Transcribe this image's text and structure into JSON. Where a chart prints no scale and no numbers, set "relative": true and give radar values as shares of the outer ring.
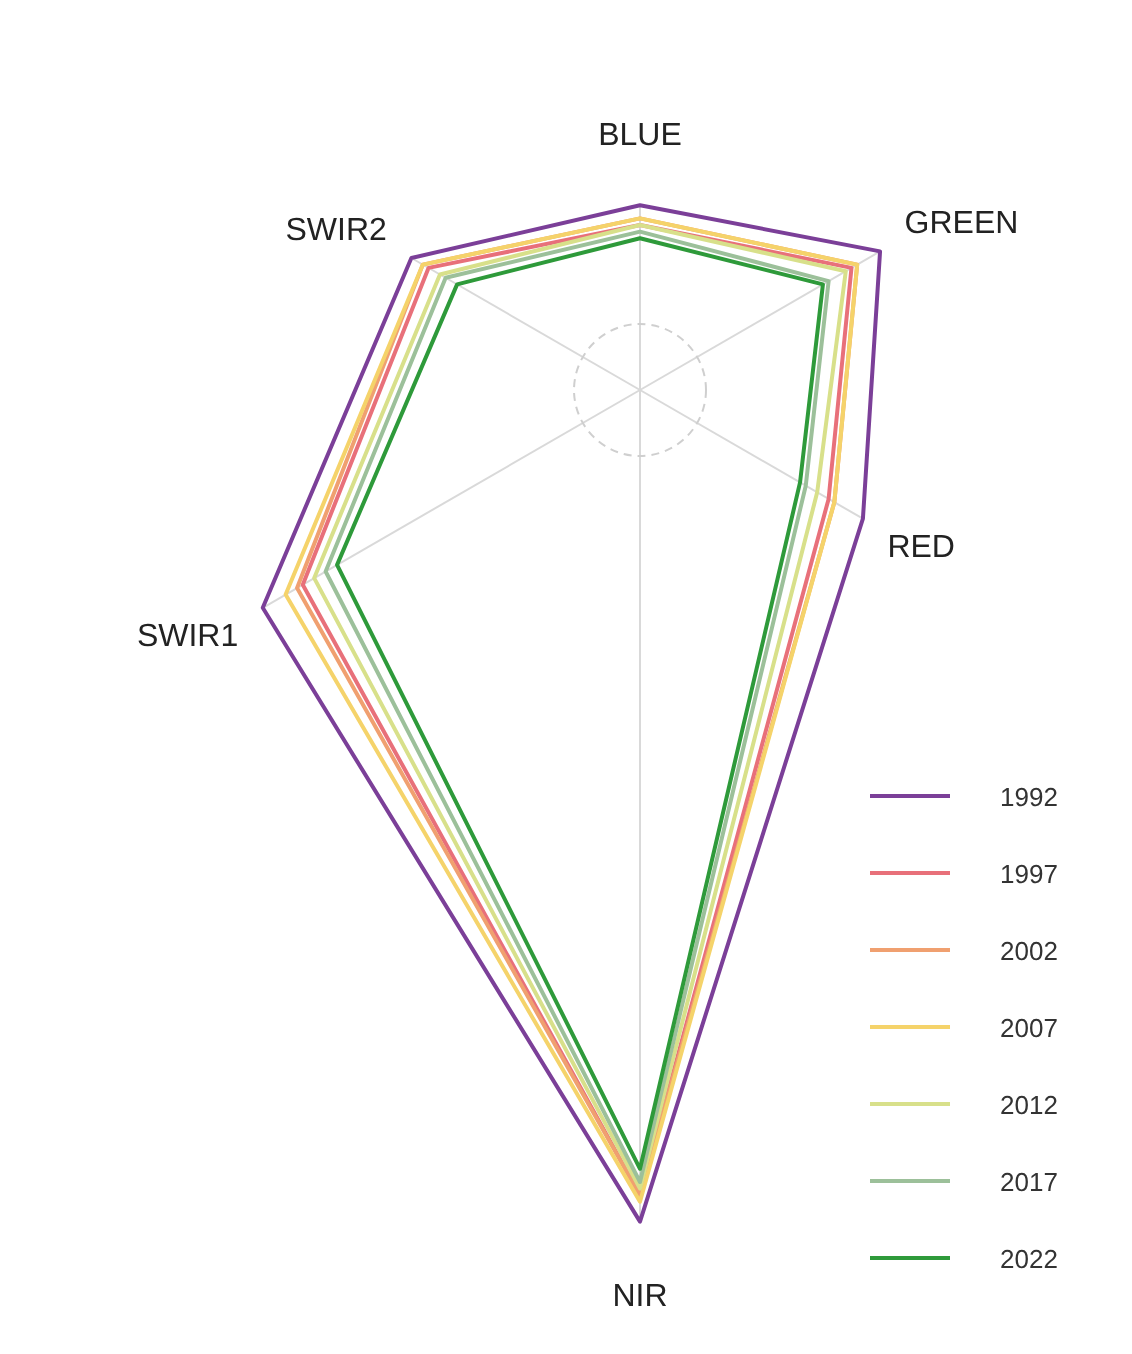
{
  "chart_data": {
    "type": "radar",
    "relative": true,
    "categories": [
      "BLUE",
      "GREEN",
      "RED",
      "NIR",
      "SWIR1",
      "SWIR2"
    ],
    "grid": true,
    "legend": "bottom right",
    "series": [
      {
        "name": "1992",
        "color": "#7b3f98",
        "values": [
          2.8,
          4.2,
          3.9,
          12.6,
          6.6,
          4.0
        ]
      },
      {
        "name": "1997",
        "color": "#e8707a",
        "values": [
          2.5,
          3.7,
          3.3,
          12.2,
          5.9,
          3.7
        ]
      },
      {
        "name": "2002",
        "color": "#f0a070",
        "values": [
          2.6,
          3.8,
          3.4,
          12.2,
          6.0,
          3.8
        ]
      },
      {
        "name": "2007",
        "color": "#f5d36a",
        "values": [
          2.6,
          3.8,
          3.4,
          12.3,
          6.2,
          3.8
        ]
      },
      {
        "name": "2012",
        "color": "#d8e08a",
        "values": [
          2.5,
          3.6,
          3.1,
          12.1,
          5.7,
          3.5
        ]
      },
      {
        "name": "2017",
        "color": "#9cc09a",
        "values": [
          2.4,
          3.3,
          2.9,
          12.0,
          5.5,
          3.4
        ]
      },
      {
        "name": "2022",
        "color": "#2e9a3a",
        "values": [
          2.3,
          3.2,
          2.8,
          11.8,
          5.3,
          3.2
        ]
      }
    ]
  }
}
